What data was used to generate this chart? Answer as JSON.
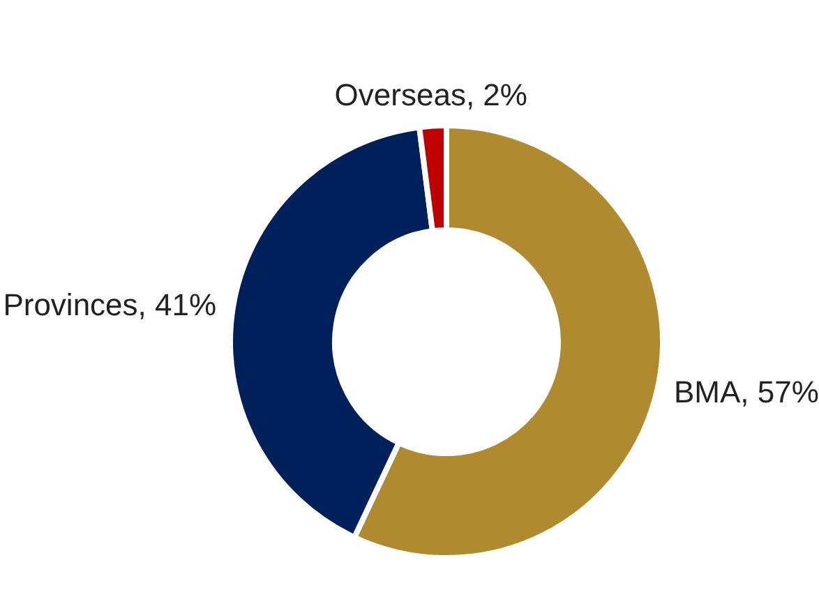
{
  "chart_data": {
    "type": "donut",
    "categories": [
      "BMA",
      "Provinces",
      "Overseas"
    ],
    "values": [
      57,
      41,
      2
    ],
    "value_labels": [
      "57%",
      "41%",
      "2%"
    ],
    "colors": [
      "#b08a2e",
      "#00205b",
      "#c00000"
    ],
    "legend": false
  }
}
